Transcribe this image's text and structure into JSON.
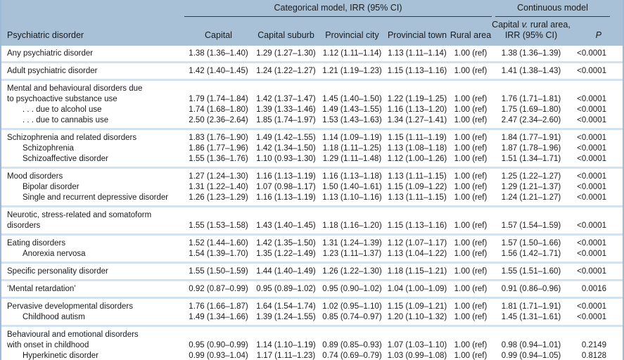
{
  "table": {
    "header": {
      "span_categorical": "Categorical model, IRR (95% CI)",
      "span_continuous": "Continuous model",
      "col_disorder": "Psychiatric disorder",
      "col_capital": "Capital",
      "col_capital_suburb": "Capital suburb",
      "col_provincial_city": "Provincial city",
      "col_provincial_town": "Provincial town",
      "col_rural_area": "Rural area",
      "col_continuous_pre": "Capital ",
      "col_continuous_v": "v.",
      "col_continuous_post": " rural area, IRR (95% CI)",
      "col_p": "P"
    },
    "colors": {
      "header_bg": "#a8c1d7",
      "separator": "#d2e2f1",
      "side_border": "#9dbbd6",
      "text": "#1a1a1a"
    },
    "groups": [
      {
        "rows": [
          {
            "label": "Any psychiatric disorder",
            "indent": false,
            "values": [
              "1.38 (1.36–1.40)",
              "1.29 (1.27–1.30)",
              "1.12 (1.11–1.14)",
              "1.13 (1.11–1.14)",
              "1.00 (ref)",
              "1.38 (1.36–1.39)",
              "<0.0001"
            ]
          }
        ]
      },
      {
        "rows": [
          {
            "label": "Adult psychiatric disorder",
            "indent": false,
            "values": [
              "1.42 (1.40–1.45)",
              "1.24 (1.22–1.27)",
              "1.21 (1.19–1.23)",
              "1.15 (1.13–1.16)",
              "1.00 (ref)",
              "1.41 (1.38–1.43)",
              "<0.0001"
            ]
          }
        ]
      },
      {
        "rows": [
          {
            "label": [
              "Mental and behavioural disorders due",
              "to psychoactive substance use"
            ],
            "indent": false,
            "values": [
              "1.79 (1.74–1.84)",
              "1.42 (1.37–1.47)",
              "1.45 (1.40–1.50)",
              "1.22 (1.19–1.25)",
              "1.00 (ref)",
              "1.76 (1.71–1.81)",
              "<0.0001"
            ]
          },
          {
            "label": ". . . due to alcohol use",
            "indent": true,
            "values": [
              "1.74 (1.68–1.80)",
              "1.39 (1.33–1.46)",
              "1.49 (1.43–1.55)",
              "1.16 (1.13–1.20)",
              "1.00 (ref)",
              "1.75 (1.69–1.80)",
              "<0.0001"
            ]
          },
          {
            "label": ". . . due to cannabis use",
            "indent": true,
            "values": [
              "2.50 (2.36–2.64)",
              "1.85 (1.74–1.97)",
              "1.53 (1.43–1.63)",
              "1.34 (1.27–1.41)",
              "1.00 (ref)",
              "2.47 (2.34–2.60)",
              "<0.0001"
            ]
          }
        ]
      },
      {
        "rows": [
          {
            "label": "Schizophrenia and related disorders",
            "indent": false,
            "values": [
              "1.83 (1.76–1.90)",
              "1.49 (1.42–1.55)",
              "1.14 (1.09–1.19)",
              "1.15 (1.11–1.19)",
              "1.00 (ref)",
              "1.84 (1.77–1.91)",
              "<0.0001"
            ]
          },
          {
            "label": "Schizophrenia",
            "indent": true,
            "values": [
              "1.86 (1.77–1.96)",
              "1.42 (1.34–1.50)",
              "1.18 (1.11–1.25)",
              "1.13 (1.08–1.18)",
              "1.00 (ref)",
              "1.87 (1.78–1.96)",
              "<0.0001"
            ]
          },
          {
            "label": "Schizoaffective disorder",
            "indent": true,
            "values": [
              "1.55 (1.36–1.76)",
              "1.10 (0.93–1.30)",
              "1.29 (1.11–1.48)",
              "1.12 (1.00–1.26)",
              "1.00 (ref)",
              "1.51 (1.34–1.71)",
              "<0.0001"
            ]
          }
        ]
      },
      {
        "rows": [
          {
            "label": "Mood disorders",
            "indent": false,
            "values": [
              "1.27 (1.24–1.30)",
              "1.16 (1.13–1.19)",
              "1.16 (1.13–1.18)",
              "1.13 (1.11–1.15)",
              "1.00 (ref)",
              "1.25 (1.22–1.27)",
              "<0.0001"
            ]
          },
          {
            "label": "Bipolar disorder",
            "indent": true,
            "values": [
              "1.31 (1.22–1.40)",
              "1.07 (0.98–1.17)",
              "1.50 (1.40–1.61)",
              "1.15 (1.09–1.22)",
              "1.00 (ref)",
              "1.29 (1.21–1.37)",
              "<0.0001"
            ]
          },
          {
            "label": "Single and recurrent depressive disorder",
            "indent": true,
            "values": [
              "1.26 (1.23–1.29)",
              "1.16 (1.13–1.19)",
              "1.13 (1.10–1.16)",
              "1.13 (1.11–1.15)",
              "1.00 (ref)",
              "1.24 (1.21–1.27)",
              "<0.0001"
            ]
          }
        ]
      },
      {
        "rows": [
          {
            "label": [
              "Neurotic, stress-related and somatoform",
              "disorders"
            ],
            "indent": false,
            "values": [
              "1.55 (1.53–1.58)",
              "1.43 (1.40–1.45)",
              "1.18 (1.16–1.20)",
              "1.15 (1.13–1.16)",
              "1.00 (ref)",
              "1.57 (1.54–1.59)",
              "<0.0001"
            ]
          }
        ]
      },
      {
        "rows": [
          {
            "label": "Eating disorders",
            "indent": false,
            "values": [
              "1.52 (1.44–1.60)",
              "1.42 (1.35–1.50)",
              "1.31 (1.24–1.39)",
              "1.12 (1.07–1.17)",
              "1.00 (ref)",
              "1.57 (1.50–1.66)",
              "<0.0001"
            ]
          },
          {
            "label": "Anorexia nervosa",
            "indent": true,
            "values": [
              "1.54 (1.39–1.70)",
              "1.35 (1.22–1.49)",
              "1.23 (1.11–1.37)",
              "1.13 (1.04–1.22)",
              "1.00 (ref)",
              "1.56 (1.42–1.71)",
              "<0.0001"
            ]
          }
        ]
      },
      {
        "rows": [
          {
            "label": "Specific personality disorder",
            "indent": false,
            "values": [
              "1.55 (1.50–1.59)",
              "1.44 (1.40–1.49)",
              "1.26 (1.22–1.30)",
              "1.18 (1.15–1.21)",
              "1.00 (ref)",
              "1.55 (1.51–1.60)",
              "<0.0001"
            ]
          }
        ]
      },
      {
        "rows": [
          {
            "label": "‘Mental retardation’",
            "indent": false,
            "values": [
              "0.92 (0.87–0.99)",
              "0.95 (0.89–1.02)",
              "0.95 (0.90–1.02)",
              "1.04 (1.00–1.09)",
              "1.00 (ref)",
              "0.91 (0.86–0.96)",
              "0.0016"
            ]
          }
        ]
      },
      {
        "rows": [
          {
            "label": "Pervasive developmental disorders",
            "indent": false,
            "values": [
              "1.76 (1.66–1.87)",
              "1.64 (1.54–1.74)",
              "1.02 (0.95–1.10)",
              "1.15 (1.09–1.21)",
              "1.00 (ref)",
              "1.81 (1.71–1.91)",
              "<0.0001"
            ]
          },
          {
            "label": "Childhood autism",
            "indent": true,
            "values": [
              "1.49 (1.34–1.66)",
              "1.39 (1.24–1.55)",
              "0.85 (0.74–0.97)",
              "1.20 (1.10–1.32)",
              "1.00 (ref)",
              "1.45 (1.31–1.61)",
              "<0.0001"
            ]
          }
        ]
      },
      {
        "rows": [
          {
            "label": [
              "Behavioural and emotional disorders",
              "with onset in childhood"
            ],
            "indent": false,
            "values": [
              "0.95 (0.90–0.99)",
              "1.14 (1.10–1.19)",
              "0.89 (0.85–0.93)",
              "1.07 (1.03–1.10)",
              "1.00 (ref)",
              "0.98 (0.94–1.01)",
              "0.2149"
            ]
          },
          {
            "label": "Hyperkinetic disorder",
            "indent": true,
            "values": [
              "0.99 (0.93–1.04)",
              "1.17 (1.11–1.23)",
              "0.74 (0.69–0.79)",
              "1.03 (0.99–1.08)",
              "1.00 (ref)",
              "0.99 (0.94–1.05)",
              "0.8128"
            ]
          }
        ]
      }
    ]
  }
}
